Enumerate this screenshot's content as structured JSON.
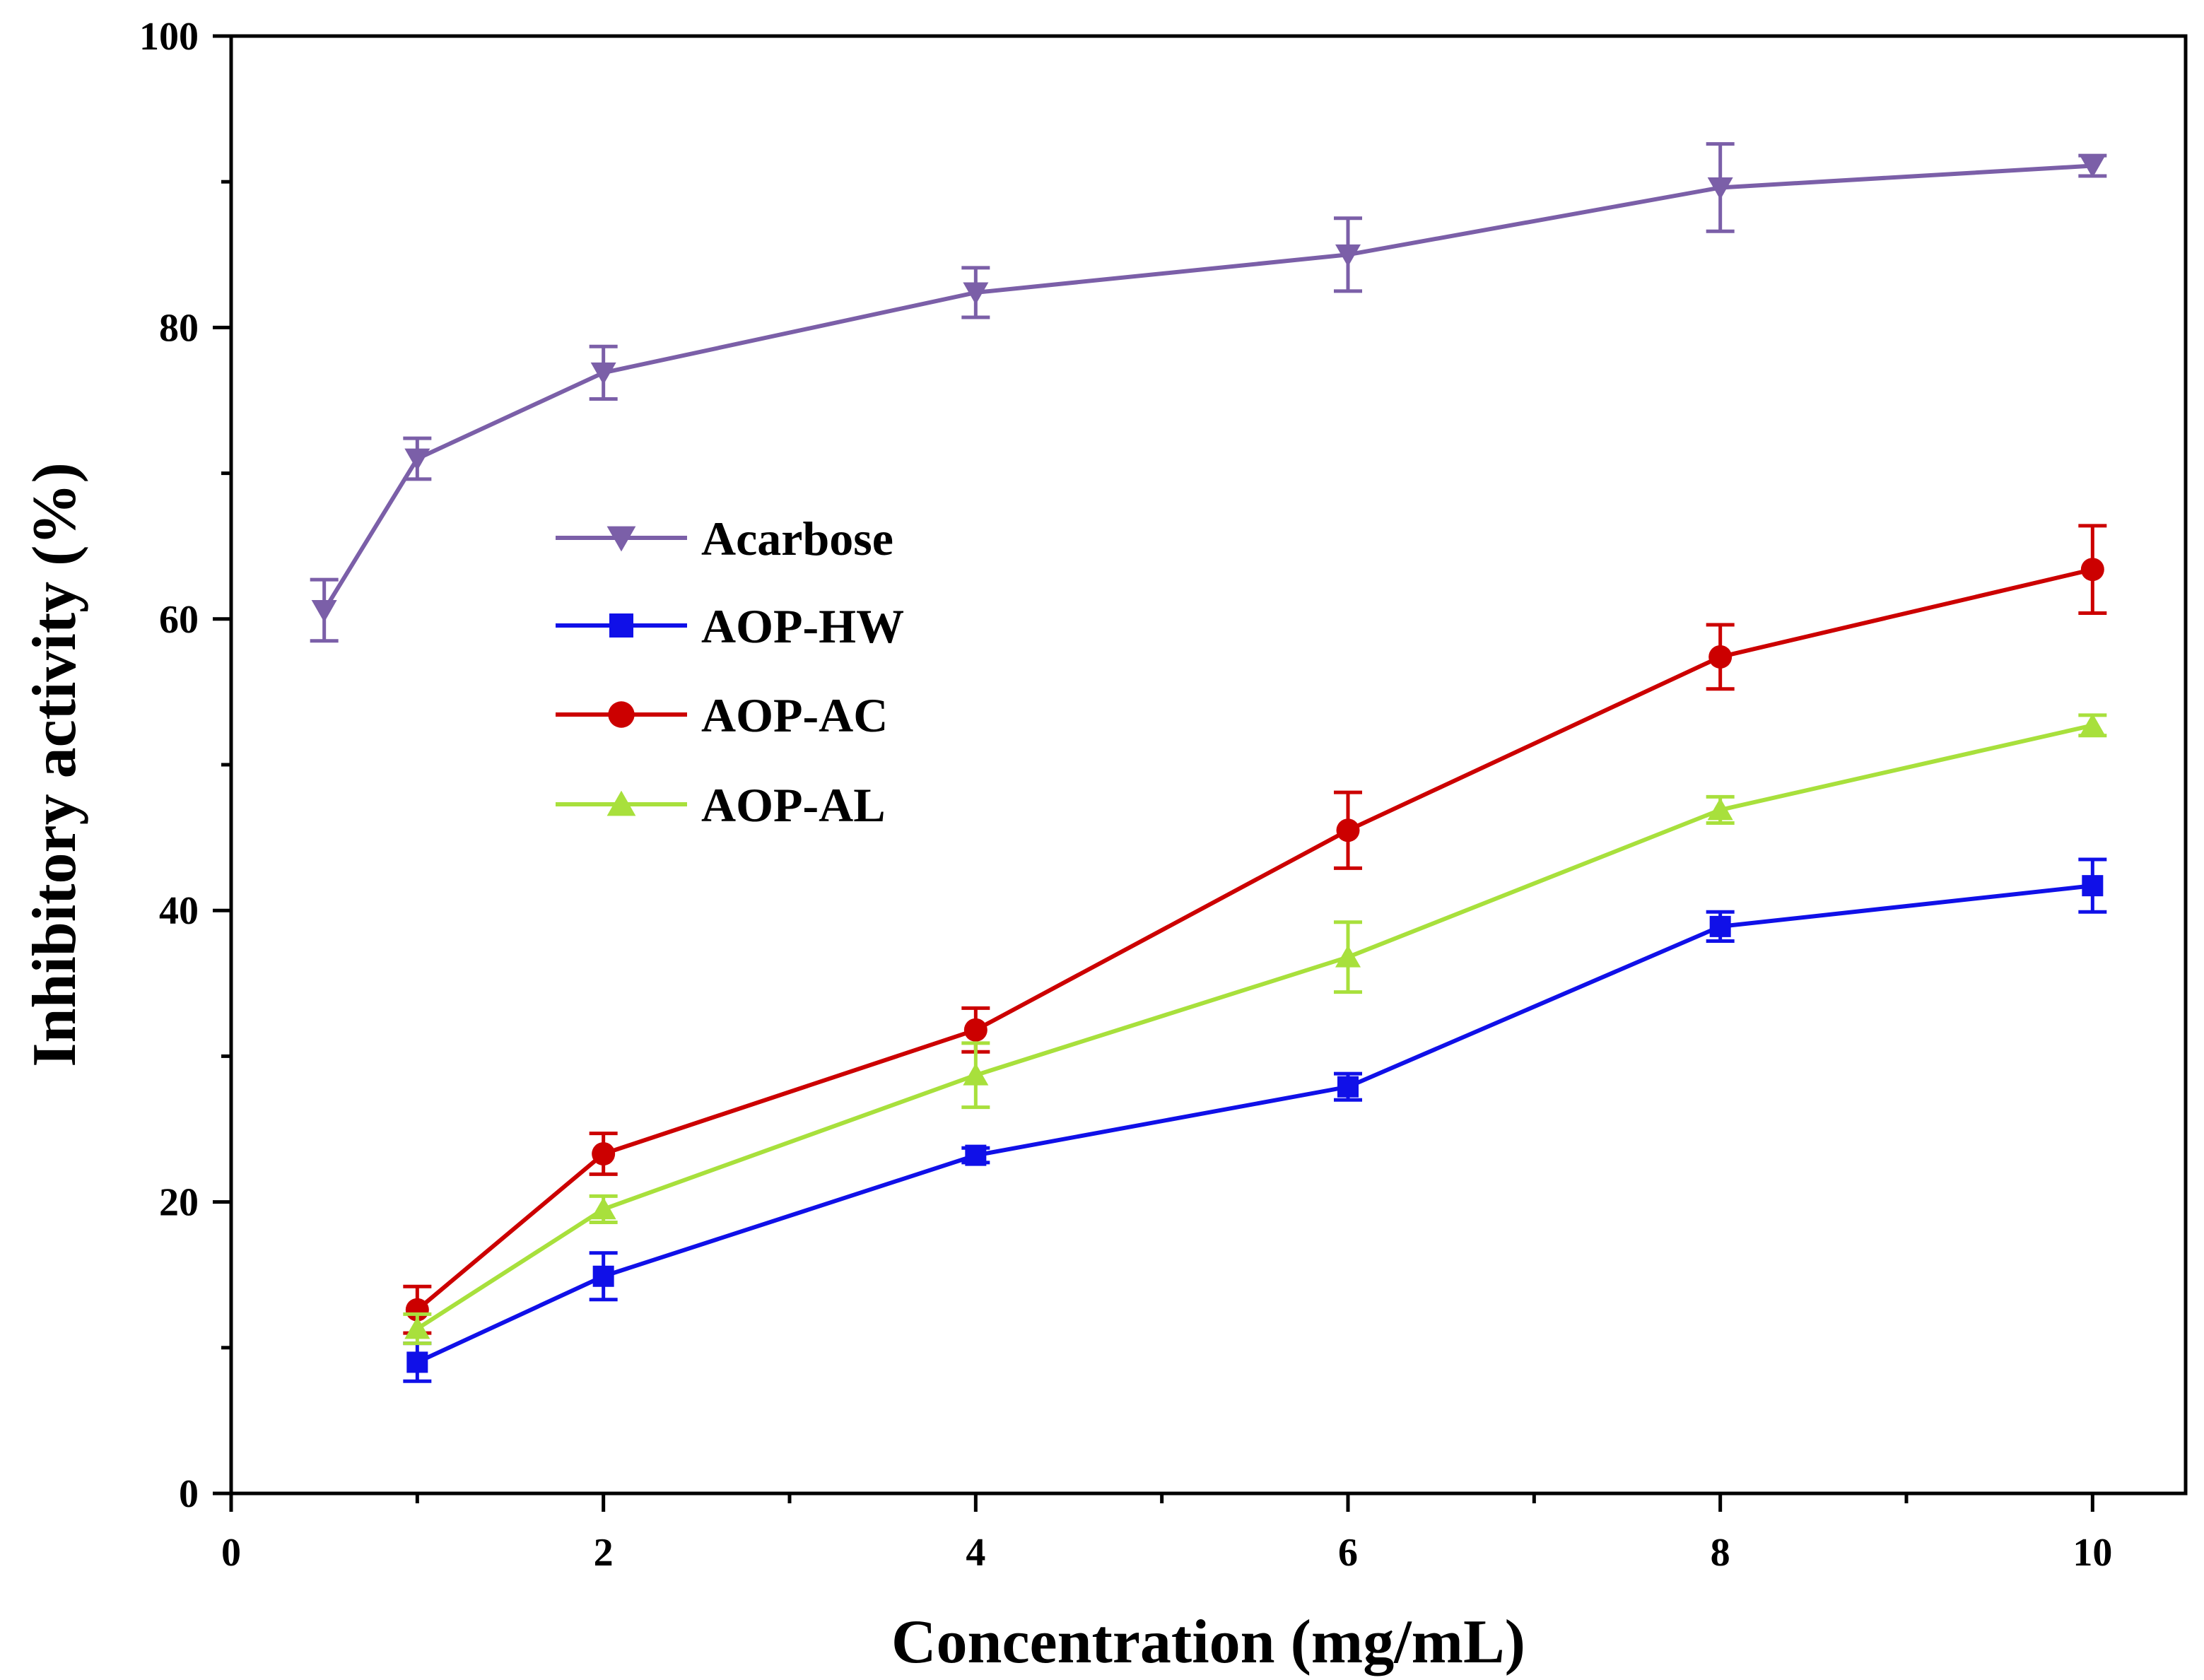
{
  "chart_data": {
    "type": "line",
    "title": "",
    "xlabel": "Concentration (mg/mL)",
    "ylabel": "Inhibitory activity (%)",
    "xlim": [
      0,
      10.5
    ],
    "ylim": [
      0,
      100
    ],
    "x_ticks": [
      0,
      2,
      4,
      6,
      8,
      10
    ],
    "x_minor_ticks": [
      1,
      3,
      5,
      7,
      9
    ],
    "y_ticks": [
      0,
      20,
      40,
      60,
      80,
      100
    ],
    "y_minor_ticks": [
      10,
      30,
      50,
      70,
      90
    ],
    "grid": false,
    "legend_position": "center-left",
    "series": [
      {
        "name": "Acarbose",
        "color": "#7b5fa8",
        "marker": "triangle-down",
        "x": [
          0.5,
          1,
          2,
          4,
          6,
          8,
          10
        ],
        "y": [
          60.6,
          71.0,
          76.9,
          82.4,
          85.0,
          89.6,
          91.1
        ],
        "err": [
          2.1,
          1.4,
          1.8,
          1.7,
          2.5,
          3.0,
          0.7
        ]
      },
      {
        "name": "AOP-HW",
        "color": "#1010e8",
        "marker": "square",
        "x": [
          1,
          2,
          4,
          6,
          8,
          10
        ],
        "y": [
          9.0,
          14.9,
          23.2,
          27.9,
          38.9,
          41.7
        ],
        "err": [
          1.3,
          1.6,
          0.5,
          0.9,
          1.0,
          1.8
        ]
      },
      {
        "name": "AOP-AC",
        "color": "#cc0000",
        "marker": "circle",
        "x": [
          1,
          2,
          4,
          6,
          8,
          10
        ],
        "y": [
          12.6,
          23.3,
          31.8,
          45.5,
          57.4,
          63.4
        ],
        "err": [
          1.6,
          1.4,
          1.5,
          2.6,
          2.2,
          3.0
        ]
      },
      {
        "name": "AOP-AL",
        "color": "#a8e03c",
        "marker": "triangle-up",
        "x": [
          1,
          2,
          4,
          6,
          8,
          10
        ],
        "y": [
          11.3,
          19.5,
          28.7,
          36.8,
          46.9,
          52.7
        ],
        "err": [
          1.0,
          0.9,
          2.2,
          2.4,
          0.9,
          0.7
        ]
      }
    ]
  }
}
